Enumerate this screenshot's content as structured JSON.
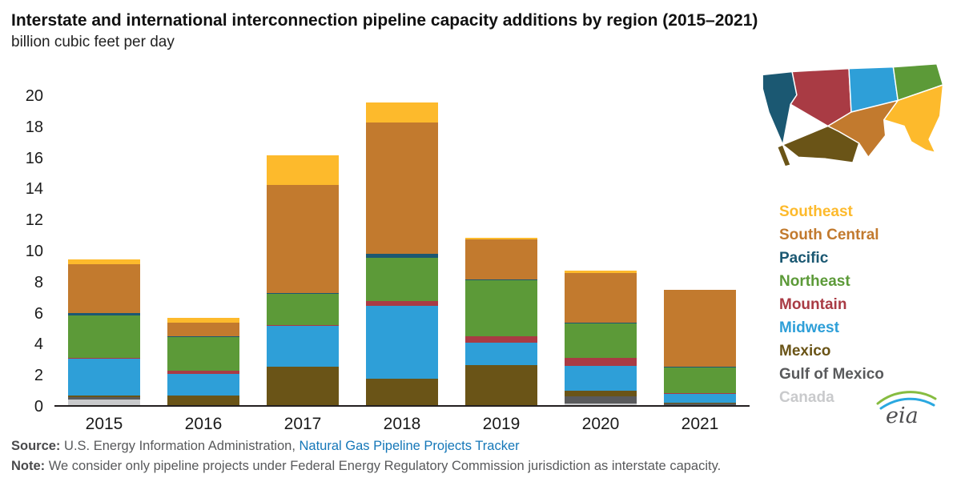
{
  "title": "Interstate and international interconnection pipeline capacity additions by region (2015–2021)",
  "subtitle": "billion cubic feet per day",
  "chart_data": {
    "type": "bar",
    "stacked": true,
    "title": "Interstate and international interconnection pipeline capacity additions by region (2015–2021)",
    "ylabel": "billion cubic feet per day",
    "xlabel": "",
    "ylim": [
      0,
      20
    ],
    "ytick_step": 2,
    "grid": false,
    "legend_position": "right",
    "categories": [
      "2015",
      "2016",
      "2017",
      "2018",
      "2019",
      "2020",
      "2021"
    ],
    "series": [
      {
        "name": "Canada",
        "color": "#C9CACC",
        "values": [
          0.35,
          0,
          0,
          0,
          0,
          0.1,
          0
        ]
      },
      {
        "name": "Gulf of Mexico",
        "color": "#595A5C",
        "values": [
          0.15,
          0,
          0,
          0,
          0,
          0.45,
          0.1
        ]
      },
      {
        "name": "Mexico",
        "color": "#6A5417",
        "values": [
          0.1,
          0.6,
          2.5,
          1.7,
          2.6,
          0.4,
          0.05
        ]
      },
      {
        "name": "Midwest",
        "color": "#2E9FD8",
        "values": [
          2.4,
          1.4,
          2.6,
          4.7,
          1.4,
          1.6,
          0.55
        ]
      },
      {
        "name": "Mountain",
        "color": "#A93B44",
        "values": [
          0.05,
          0.2,
          0.05,
          0.3,
          0.45,
          0.5,
          0.05
        ]
      },
      {
        "name": "Northeast",
        "color": "#5C9A38",
        "values": [
          2.7,
          2.2,
          2.0,
          2.8,
          3.6,
          2.2,
          1.65
        ]
      },
      {
        "name": "Pacific",
        "color": "#1B5872",
        "values": [
          0.2,
          0.05,
          0.05,
          0.25,
          0.05,
          0.05,
          0.05
        ]
      },
      {
        "name": "South Central",
        "color": "#C27A2E",
        "values": [
          3.1,
          0.85,
          7.0,
          8.45,
          2.55,
          3.2,
          4.95
        ]
      },
      {
        "name": "Southeast",
        "color": "#FDBA2C",
        "values": [
          0.35,
          0.3,
          1.9,
          1.3,
          0.1,
          0.15,
          0
        ]
      }
    ]
  },
  "footer": {
    "source_label": "Source: ",
    "source_text": "U.S. Energy Information Administration, ",
    "source_link": "Natural Gas Pipeline Projects Tracker",
    "note_label": "Note: ",
    "note_text": "We consider only pipeline projects under Federal Energy Regulatory Commission jurisdiction as interstate capacity."
  },
  "logo": {
    "text": "eia"
  }
}
